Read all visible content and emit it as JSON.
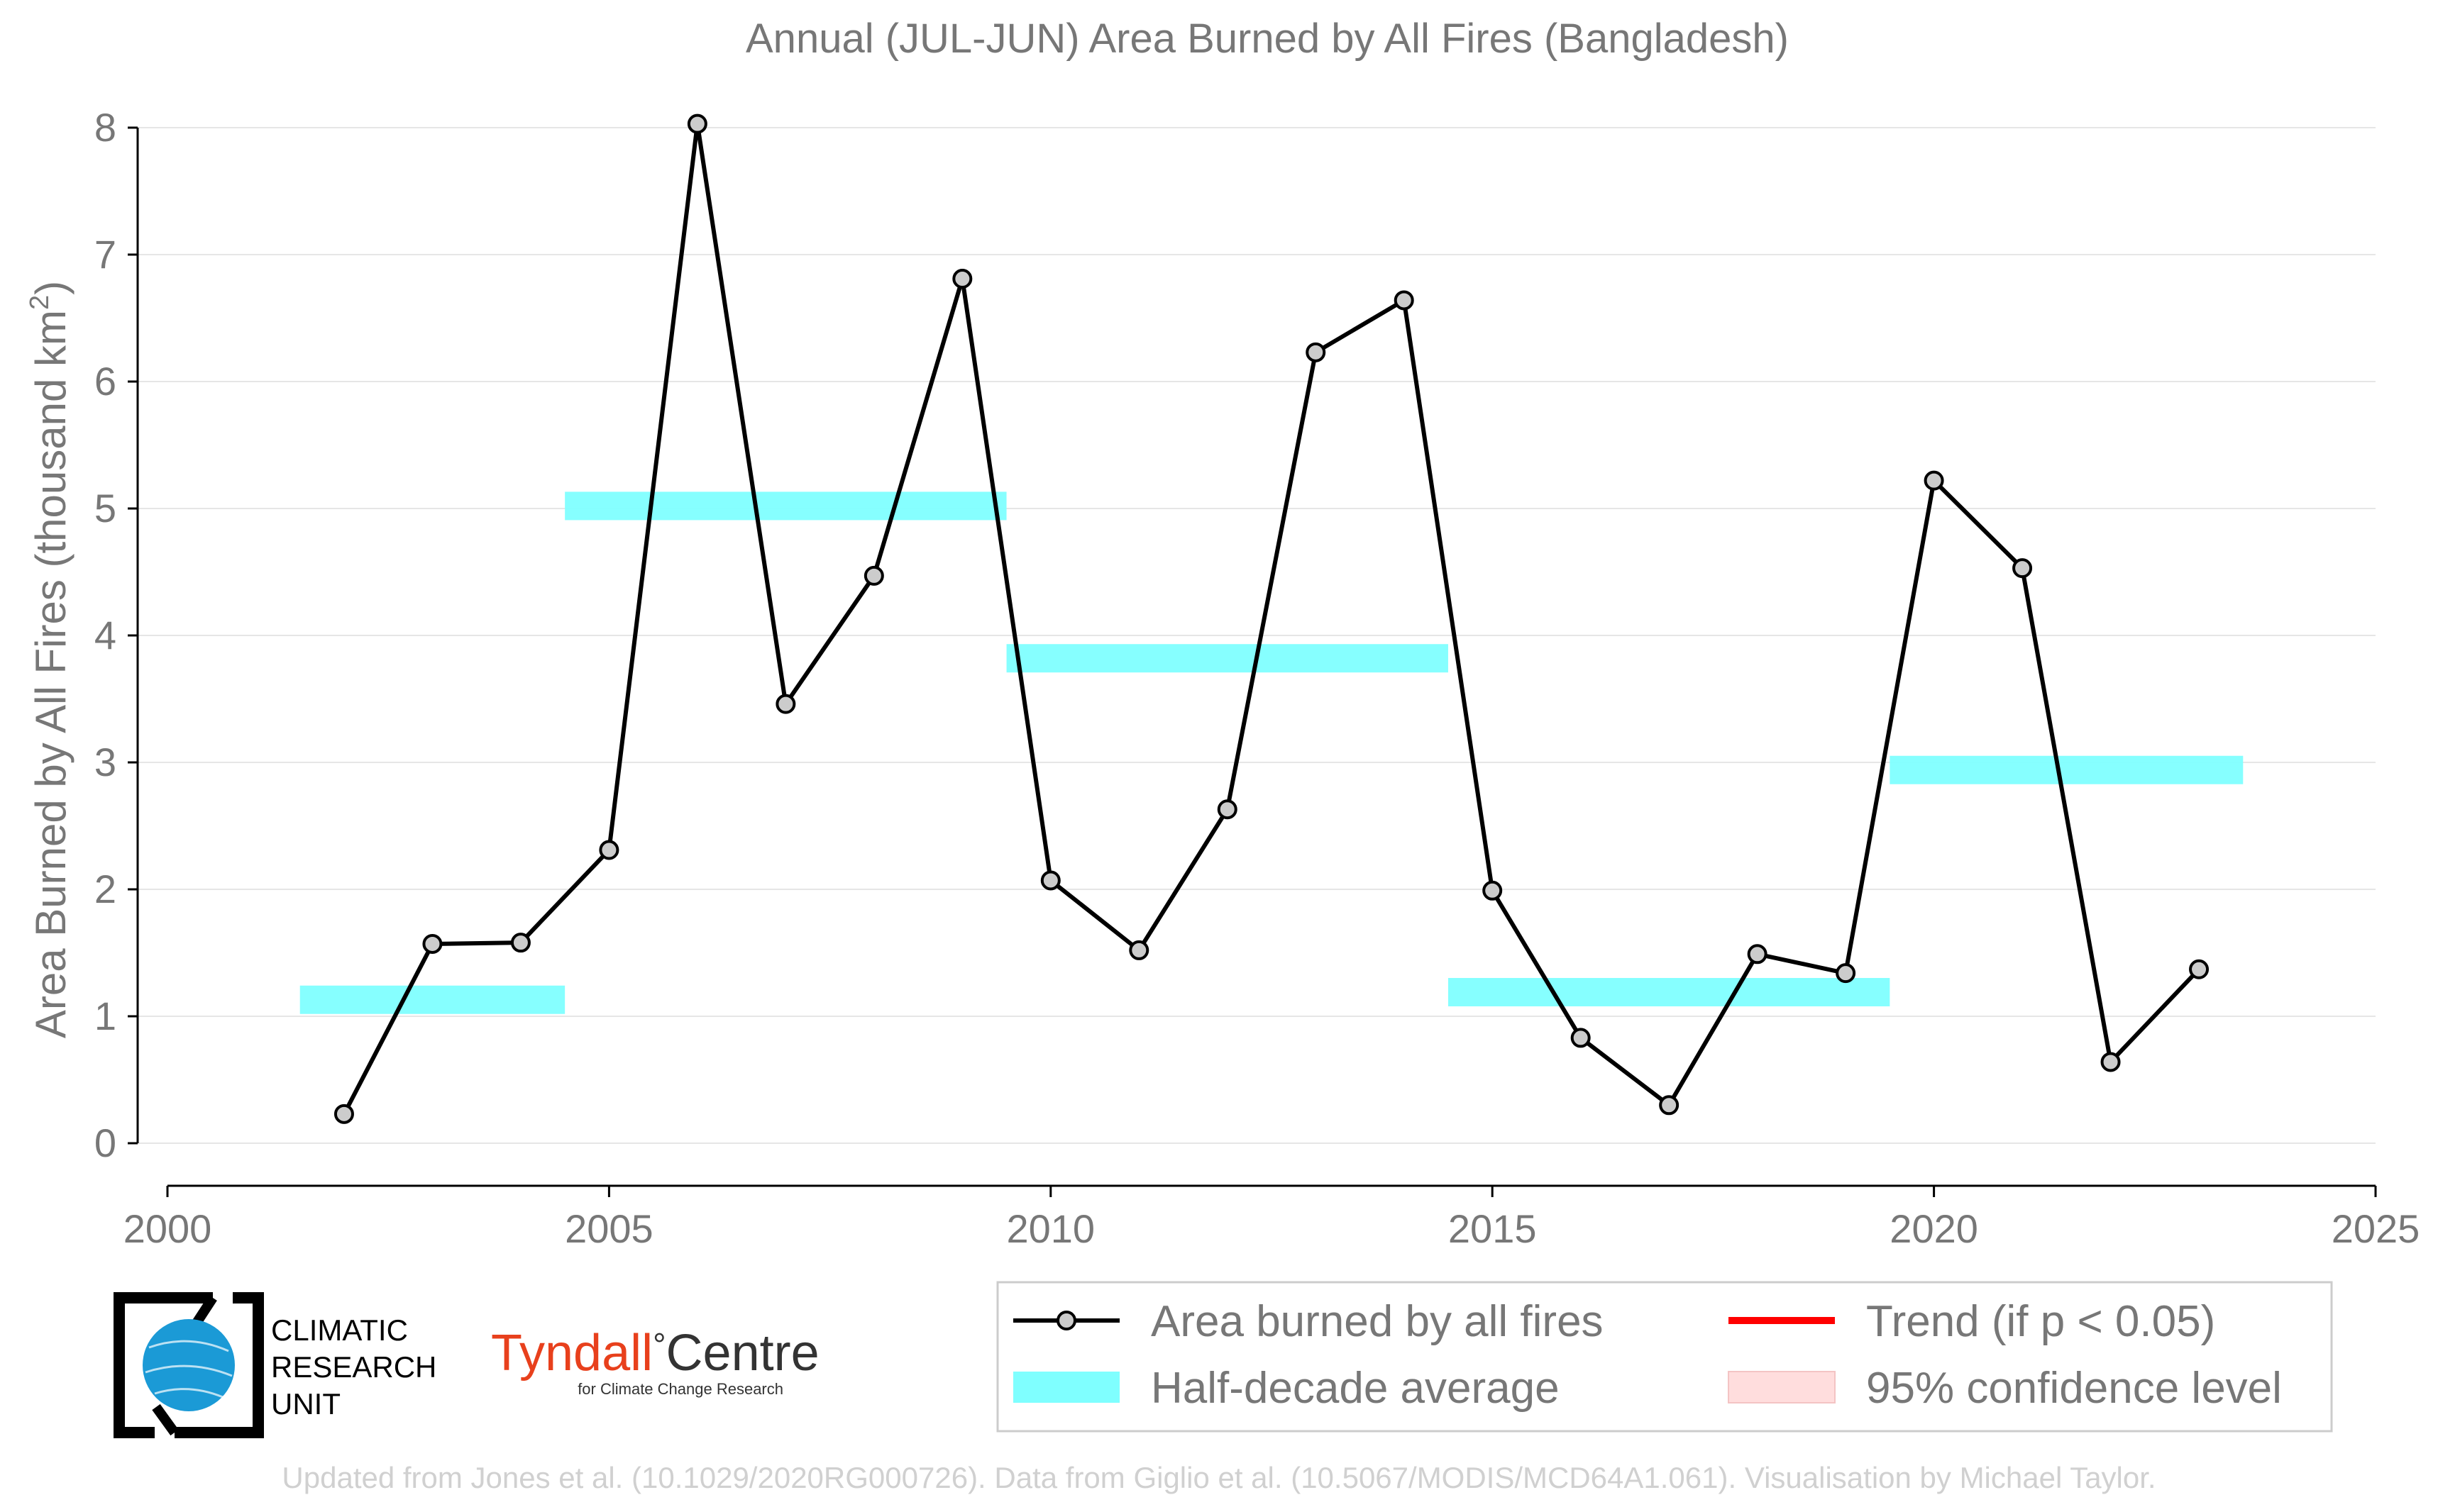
{
  "chart_data": {
    "type": "line",
    "title": "Annual (JUL-JUN) Area Burned by All Fires (Bangladesh)",
    "ylabel": "Area Burned by All Fires (thousand km",
    "ylabel_sup": "2",
    "ylabel_close": ")",
    "xlabel": "",
    "xlim": [
      2000,
      2025
    ],
    "ylim": [
      0,
      8
    ],
    "xticks": [
      2000,
      2005,
      2010,
      2015,
      2020,
      2025
    ],
    "yticks": [
      0,
      1,
      2,
      3,
      4,
      5,
      6,
      7,
      8
    ],
    "grid": "horizontal",
    "series": [
      {
        "name": "Area burned by all fires",
        "color": "#000000",
        "marker_fill": "#cccccc",
        "x": [
          2002,
          2003,
          2004,
          2005,
          2006,
          2007,
          2008,
          2009,
          2010,
          2011,
          2012,
          2013,
          2014,
          2015,
          2016,
          2017,
          2018,
          2019,
          2020,
          2021,
          2022,
          2023
        ],
        "values": [
          0.23,
          1.57,
          1.58,
          2.31,
          8.03,
          3.46,
          4.47,
          6.81,
          2.07,
          1.52,
          2.63,
          6.23,
          6.64,
          1.99,
          0.83,
          0.3,
          1.49,
          1.34,
          5.22,
          4.53,
          0.64,
          1.37
        ]
      }
    ],
    "half_decade_average": {
      "name": "Half-decade average",
      "color": "#7fffff",
      "segments": [
        {
          "x0": 2001.5,
          "x1": 2004.5,
          "y": 1.13
        },
        {
          "x0": 2004.5,
          "x1": 2009.5,
          "y": 5.02
        },
        {
          "x0": 2009.5,
          "x1": 2014.5,
          "y": 3.82
        },
        {
          "x0": 2014.5,
          "x1": 2019.5,
          "y": 1.19
        },
        {
          "x0": 2019.5,
          "x1": 2023.5,
          "y": 2.94
        }
      ]
    },
    "legend": {
      "placement": "bottom-right",
      "entries": [
        {
          "label": "Area burned by all fires",
          "kind": "line-marker",
          "color": "#000000"
        },
        {
          "label": "Half-decade average",
          "kind": "patch",
          "color": "#7fffff"
        },
        {
          "label": "Trend (if p < 0.05)",
          "kind": "line",
          "color": "#ff0000"
        },
        {
          "label": "95% confidence level",
          "kind": "patch",
          "color": "#ffdddd"
        }
      ]
    }
  },
  "logos": {
    "cru": {
      "line1": "CLIMATIC",
      "line2": "RESEARCH",
      "line3": "UNIT",
      "globe_color": "#1b9ad6"
    },
    "tyndall": {
      "name": "Tyndall",
      "degree": "°",
      "suffix": "Centre",
      "subtitle": "for Climate Change Research",
      "name_color": "#e8401c"
    }
  },
  "footer": "Updated from Jones et al. (10.1029/2020RG000726). Data from Giglio et al. (10.5067/MODIS/MCD64A1.061). Visualisation by Michael Taylor."
}
